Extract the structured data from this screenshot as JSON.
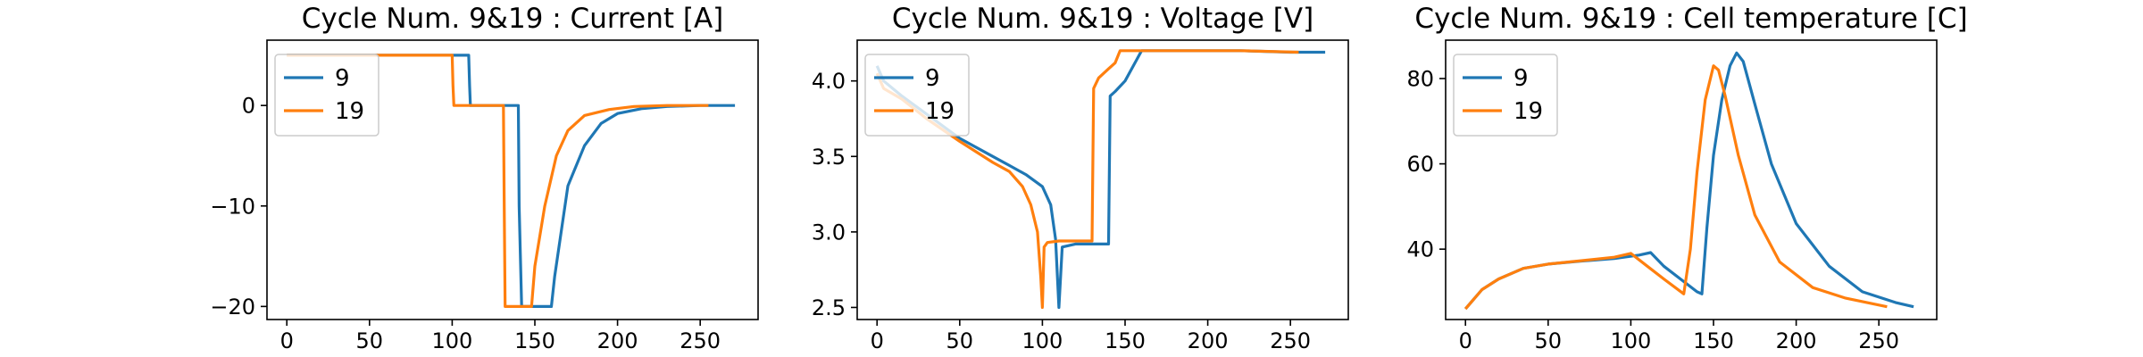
{
  "chart_data": [
    {
      "type": "line",
      "title": "Cycle Num. 9&19 : Current [A]",
      "xlabel": "",
      "ylabel": "",
      "xlim": [
        -12,
        285
      ],
      "ylim": [
        -21.3,
        6.5
      ],
      "xticks": [
        0,
        50,
        100,
        150,
        200,
        250
      ],
      "yticks": [
        0,
        -10,
        -20
      ],
      "ytick_labels": [
        "0",
        "−10",
        "−20"
      ],
      "legend": "upper-left",
      "series": [
        {
          "name": "9",
          "color": "#1f77b4",
          "x": [
            0,
            110,
            110.5,
            111,
            140,
            140.5,
            142,
            160,
            162,
            170,
            180,
            190,
            200,
            215,
            230,
            250,
            271
          ],
          "y": [
            5,
            5,
            2,
            0,
            0,
            -10,
            -20,
            -20,
            -17,
            -8,
            -4,
            -1.8,
            -0.8,
            -0.3,
            -0.1,
            0,
            0
          ]
        },
        {
          "name": "19",
          "color": "#ff7f0e",
          "x": [
            0,
            100,
            100.5,
            101,
            131,
            131.5,
            132,
            148,
            150,
            156,
            163,
            170,
            180,
            195,
            210,
            230,
            255
          ],
          "y": [
            5,
            5,
            2,
            0,
            0,
            -10,
            -20,
            -20,
            -16,
            -10,
            -5,
            -2.5,
            -1,
            -0.4,
            -0.1,
            0,
            0
          ]
        }
      ]
    },
    {
      "type": "line",
      "title": "Cycle Num. 9&19 : Voltage [V]",
      "xlabel": "",
      "ylabel": "",
      "xlim": [
        -12,
        285
      ],
      "ylim": [
        2.42,
        4.27
      ],
      "xticks": [
        0,
        50,
        100,
        150,
        200,
        250
      ],
      "yticks": [
        2.5,
        3.0,
        3.5,
        4.0
      ],
      "ytick_labels": [
        "2.5",
        "3.0",
        "3.5",
        "4.0"
      ],
      "legend": "upper-left",
      "series": [
        {
          "name": "9",
          "color": "#1f77b4",
          "x": [
            0,
            4,
            15,
            30,
            50,
            70,
            80,
            90,
            100,
            105,
            108,
            110,
            112,
            120,
            140,
            141,
            144,
            150,
            156,
            160,
            180,
            220,
            250,
            271
          ],
          "y": [
            4.1,
            4.0,
            3.9,
            3.78,
            3.62,
            3.5,
            3.44,
            3.38,
            3.3,
            3.18,
            2.95,
            2.5,
            2.9,
            2.92,
            2.92,
            3.9,
            3.93,
            4.0,
            4.12,
            4.2,
            4.2,
            4.2,
            4.19,
            4.19
          ]
        },
        {
          "name": "19",
          "color": "#ff7f0e",
          "x": [
            0,
            4,
            15,
            30,
            50,
            70,
            80,
            88,
            93,
            97,
            99,
            100,
            101,
            103,
            110,
            130,
            131,
            134,
            140,
            144,
            147,
            170,
            220,
            255
          ],
          "y": [
            4.05,
            3.95,
            3.88,
            3.75,
            3.6,
            3.46,
            3.4,
            3.3,
            3.18,
            3.0,
            2.7,
            2.5,
            2.9,
            2.93,
            2.94,
            2.94,
            3.95,
            4.02,
            4.08,
            4.12,
            4.2,
            4.2,
            4.2,
            4.19
          ]
        }
      ]
    },
    {
      "type": "line",
      "title": "Cycle Num. 9&19 : Cell temperature [C]",
      "xlabel": "",
      "ylabel": "",
      "xlim": [
        -12,
        285
      ],
      "ylim": [
        23.5,
        89
      ],
      "xticks": [
        0,
        50,
        100,
        150,
        200,
        250
      ],
      "yticks": [
        40,
        60,
        80
      ],
      "ytick_labels": [
        "40",
        "60",
        "80"
      ],
      "legend": "upper-left",
      "series": [
        {
          "name": "9",
          "color": "#1f77b4",
          "x": [
            0,
            10,
            20,
            35,
            50,
            70,
            90,
            105,
            112,
            120,
            130,
            140,
            143,
            146,
            150,
            155,
            160,
            164,
            168,
            175,
            185,
            200,
            220,
            240,
            260,
            271
          ],
          "y": [
            26,
            30.5,
            33,
            35.5,
            36.5,
            37.2,
            37.8,
            38.6,
            39.2,
            36,
            33,
            30,
            29.5,
            45,
            62,
            75,
            83,
            86,
            84,
            74,
            60,
            46,
            36,
            30,
            27.5,
            26.5
          ]
        },
        {
          "name": "19",
          "color": "#ff7f0e",
          "x": [
            0,
            10,
            20,
            35,
            50,
            70,
            90,
            100,
            110,
            120,
            132,
            136,
            140,
            145,
            150,
            153,
            157,
            165,
            175,
            190,
            210,
            230,
            255
          ],
          "y": [
            26,
            30.5,
            33,
            35.5,
            36.5,
            37.3,
            38.1,
            39,
            36,
            33,
            29.5,
            40,
            58,
            75,
            83,
            82,
            76,
            62,
            48,
            37,
            31,
            28.5,
            26.5
          ]
        }
      ]
    }
  ]
}
